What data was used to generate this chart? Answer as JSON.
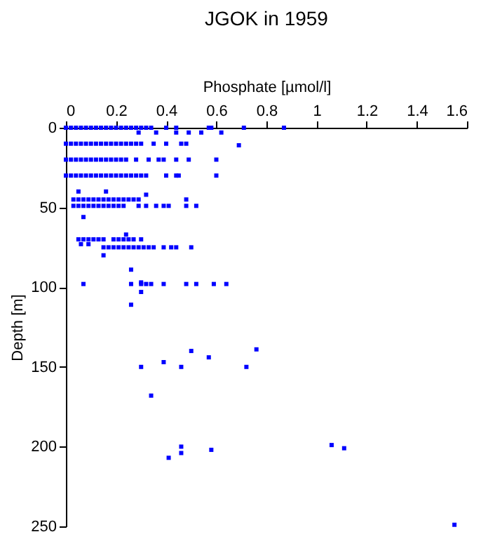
{
  "chart_data": {
    "type": "scatter",
    "title": "JGOK in 1959",
    "xlabel": "Phosphate [µmol/l]",
    "ylabel": "Depth [m]",
    "x": [
      0,
      0.02,
      0.04,
      0.06,
      0.08,
      0.1,
      0.12,
      0.14,
      0.16,
      0.18,
      0.2,
      0.22,
      0.24,
      0.26,
      0.28,
      0.3,
      0.32,
      0.34,
      0.4,
      0.44,
      0.57,
      0.58,
      0.71,
      0.87,
      0.29,
      0.36,
      0.44,
      0.49,
      0.54,
      0.62,
      0,
      0.02,
      0.04,
      0.06,
      0.08,
      0.1,
      0.12,
      0.14,
      0.16,
      0.18,
      0.2,
      0.22,
      0.24,
      0.26,
      0.28,
      0.3,
      0.35,
      0.4,
      0.46,
      0.48,
      0.69,
      0,
      0.02,
      0.04,
      0.06,
      0.08,
      0.1,
      0.12,
      0.14,
      0.16,
      0.18,
      0.2,
      0.22,
      0.24,
      0.28,
      0.33,
      0.37,
      0.39,
      0.44,
      0.49,
      0.6,
      0,
      0.02,
      0.04,
      0.06,
      0.08,
      0.1,
      0.12,
      0.14,
      0.16,
      0.18,
      0.2,
      0.22,
      0.24,
      0.26,
      0.28,
      0.3,
      0.32,
      0.4,
      0.44,
      0.45,
      0.6,
      0.05,
      0.16,
      0.32,
      0.03,
      0.05,
      0.07,
      0.09,
      0.11,
      0.13,
      0.15,
      0.17,
      0.19,
      0.21,
      0.23,
      0.25,
      0.27,
      0.29,
      0.48,
      0.03,
      0.05,
      0.07,
      0.09,
      0.11,
      0.13,
      0.15,
      0.17,
      0.19,
      0.21,
      0.23,
      0.29,
      0.32,
      0.36,
      0.39,
      0.41,
      0.48,
      0.52,
      0.07,
      0.24,
      0.05,
      0.07,
      0.09,
      0.11,
      0.13,
      0.15,
      0.19,
      0.21,
      0.23,
      0.25,
      0.27,
      0.3,
      0.06,
      0.09,
      0.15,
      0.17,
      0.19,
      0.21,
      0.23,
      0.25,
      0.27,
      0.29,
      0.31,
      0.33,
      0.35,
      0.39,
      0.42,
      0.44,
      0.5,
      0.15,
      0.26,
      0.3,
      0.07,
      0.26,
      0.3,
      0.32,
      0.34,
      0.39,
      0.48,
      0.52,
      0.59,
      0.64,
      0.3,
      0.26,
      0.76,
      0.5,
      0.57,
      0.39,
      0.3,
      0.46,
      0.72,
      0.34,
      1.06,
      0.46,
      1.11,
      0.58,
      0.46,
      0.41,
      1.55
    ],
    "series": [
      {
        "color": "#0000ff",
        "values": [
          0,
          0,
          0,
          0,
          0,
          0,
          0,
          0,
          0,
          0,
          0,
          0,
          0,
          0,
          0,
          0,
          0,
          0,
          0,
          0,
          0,
          0,
          0,
          0,
          3,
          3,
          3,
          3,
          3,
          3,
          10,
          10,
          10,
          10,
          10,
          10,
          10,
          10,
          10,
          10,
          10,
          10,
          10,
          10,
          10,
          10,
          10,
          10,
          10,
          10,
          11,
          20,
          20,
          20,
          20,
          20,
          20,
          20,
          20,
          20,
          20,
          20,
          20,
          20,
          20,
          20,
          20,
          20,
          20,
          20,
          20,
          30,
          30,
          30,
          30,
          30,
          30,
          30,
          30,
          30,
          30,
          30,
          30,
          30,
          30,
          30,
          30,
          30,
          30,
          30,
          30,
          30,
          40,
          40,
          42,
          45,
          45,
          45,
          45,
          45,
          45,
          45,
          45,
          45,
          45,
          45,
          45,
          45,
          45,
          45,
          49,
          49,
          49,
          49,
          49,
          49,
          49,
          49,
          49,
          49,
          49,
          49,
          49,
          49,
          49,
          49,
          49,
          49,
          56,
          67,
          70,
          70,
          70,
          70,
          70,
          70,
          70,
          70,
          70,
          70,
          70,
          70,
          73,
          73,
          75,
          75,
          75,
          75,
          75,
          75,
          75,
          75,
          75,
          75,
          75,
          75,
          75,
          75,
          75,
          80,
          89,
          97,
          98,
          98,
          98,
          98,
          98,
          98,
          98,
          98,
          98,
          98,
          103,
          111,
          139,
          140,
          144,
          147,
          150,
          150,
          150,
          168,
          199,
          200,
          201,
          202,
          204,
          207,
          249
        ]
      }
    ],
    "xlim": [
      0,
      1.6
    ],
    "xticks": [
      0,
      0.2,
      0.4,
      0.6,
      0.8,
      1,
      1.2,
      1.4,
      1.6
    ],
    "ylim": [
      250,
      0
    ],
    "yticks": [
      0,
      50,
      100,
      150,
      200,
      250
    ],
    "marker": "square",
    "grid": false,
    "legend": false
  }
}
